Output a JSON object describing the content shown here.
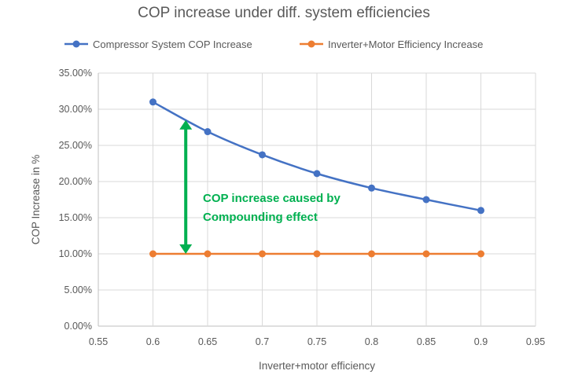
{
  "chart_data": {
    "type": "scatter",
    "title": "COP increase under diff. system efficiencies",
    "xlabel": "Inverter+motor efficiency",
    "ylabel": "COP Increase in %",
    "xlim": [
      0.55,
      0.95
    ],
    "ylim": [
      0,
      35
    ],
    "x_ticks": [
      "0.55",
      "0.6",
      "0.65",
      "0.7",
      "0.75",
      "0.8",
      "0.85",
      "0.9",
      "0.95"
    ],
    "y_ticks": [
      "0.00%",
      "5.00%",
      "10.00%",
      "15.00%",
      "20.00%",
      "25.00%",
      "30.00%",
      "35.00%"
    ],
    "grid": true,
    "legend_position": "top",
    "series": [
      {
        "name": "Compressor System COP Increase",
        "color": "#4472C4",
        "x": [
          0.6,
          0.65,
          0.7,
          0.75,
          0.8,
          0.85,
          0.9
        ],
        "y": [
          31.0,
          26.9,
          23.7,
          21.1,
          19.1,
          17.5,
          16.0
        ]
      },
      {
        "name": "Inverter+Motor Efficiency Increase",
        "color": "#ED7D31",
        "x": [
          0.6,
          0.65,
          0.7,
          0.75,
          0.8,
          0.85,
          0.9
        ],
        "y": [
          10,
          10,
          10,
          10,
          10,
          10,
          10
        ]
      }
    ],
    "annotation": {
      "lines": [
        "COP increase caused by",
        "Compounding effect"
      ],
      "color": "#00B050",
      "arrow_x": 0.63,
      "arrow_y": [
        10,
        28.5
      ]
    }
  }
}
